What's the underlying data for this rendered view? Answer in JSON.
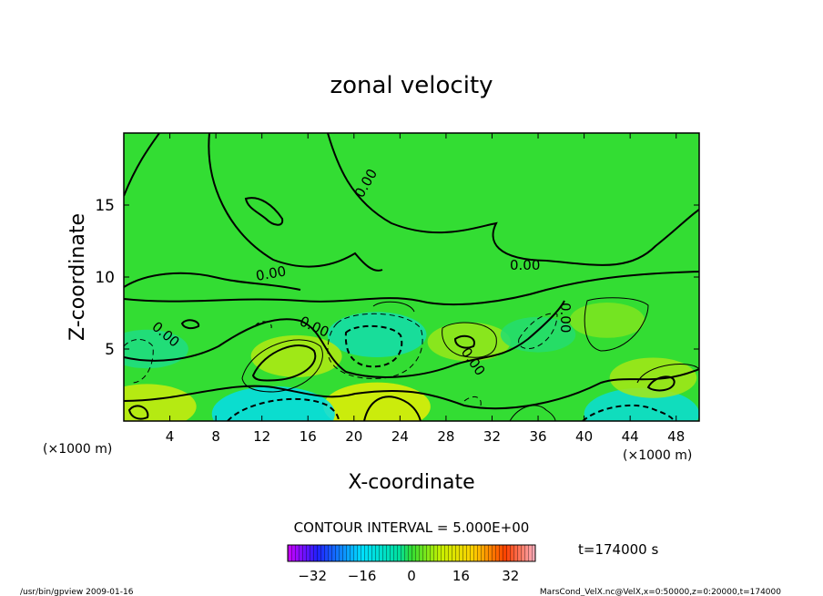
{
  "chart_data": {
    "type": "heatmap",
    "title": "zonal velocity",
    "xlabel": "X-coordinate",
    "ylabel": "Z-coordinate",
    "x_unit_left": "(×1000 m)",
    "x_unit_right": "(×1000 m)",
    "xlim": [
      0,
      50
    ],
    "ylim": [
      0,
      20
    ],
    "x_ticks": [
      4,
      8,
      12,
      16,
      20,
      24,
      28,
      32,
      36,
      40,
      44,
      48
    ],
    "y_ticks": [
      5,
      10,
      15
    ],
    "contour_labels": [
      "0.00",
      "0.00",
      "0.00",
      "0.00",
      "0.00",
      "0.00",
      "0.00"
    ],
    "contour_interval_text": "CONTOUR INTERVAL = 5.000E+00",
    "colorbar": {
      "min": -40,
      "max": 40,
      "ticks": [
        -32,
        -16,
        0,
        16,
        32
      ]
    },
    "time_text": "t=174000 s",
    "zero_color": "#33dd33",
    "features": [
      {
        "x": 22,
        "z": 6,
        "value": -12
      },
      {
        "x": 15,
        "z": 4.5,
        "value": 10
      },
      {
        "x": 22,
        "z": 1,
        "value": 14
      },
      {
        "x": 13,
        "z": 0.5,
        "value": -18
      },
      {
        "x": 45,
        "z": 0.5,
        "value": -16
      },
      {
        "x": 2,
        "z": 1,
        "value": 12
      },
      {
        "x": 30,
        "z": 5.5,
        "value": 8
      },
      {
        "x": 46,
        "z": 3,
        "value": 9
      },
      {
        "x": 42,
        "z": 7,
        "value": 6
      },
      {
        "x": 2,
        "z": 5,
        "value": -8
      },
      {
        "x": 36,
        "z": 6,
        "value": -6
      }
    ]
  },
  "footer": {
    "left": "/usr/bin/gpview   2009-01-16",
    "right": "MarsCond_VelX.nc@VelX,x=0:50000,z=0:20000,t=174000"
  }
}
